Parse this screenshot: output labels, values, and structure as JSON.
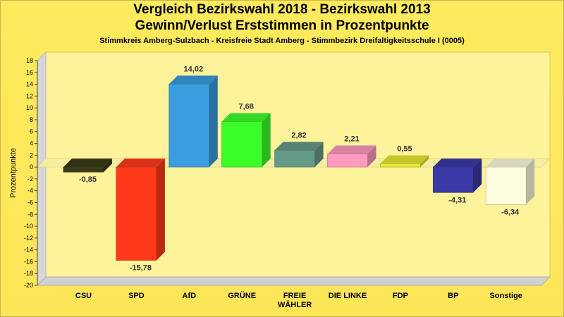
{
  "chart_data": {
    "type": "bar",
    "title": "Vergleich Bezirkswahl 2018 - Bezirkswahl 2013",
    "subtitle": "Gewinn/Verlust Erststimmen in Prozentpunkte",
    "subtitle2": "Stimmkreis Amberg-Sulzbach - Kreisfreie Stadt Amberg - Stimmbezirk Dreifaltigkeitsschule I (0005)",
    "ylabel": "Prozentpunkte",
    "xlabel": "",
    "ylim": [
      -20,
      18
    ],
    "yticks": [
      18,
      16,
      14,
      12,
      10,
      8,
      6,
      4,
      2,
      0,
      -2,
      -4,
      -6,
      -8,
      -10,
      -12,
      -14,
      -16,
      -18,
      -20
    ],
    "grid": false,
    "categories": [
      "CSU",
      "SPD",
      "AfD",
      "GRÜNE",
      "FREIE\nWÄHLER",
      "DIE LINKE",
      "FDP",
      "BP",
      "Sonstige"
    ],
    "values": [
      -0.85,
      -15.78,
      14.02,
      7.68,
      2.82,
      2.21,
      0.55,
      -4.31,
      -6.34
    ],
    "value_labels": [
      "-0,85",
      "-15,78",
      "14,02",
      "7,68",
      "2,82",
      "2,21",
      "0,55",
      "-4,31",
      "-6,34"
    ],
    "colors": [
      "#3a3a1a",
      "#ff3a1a",
      "#3a9de0",
      "#3cff2a",
      "#669a88",
      "#ff9ac0",
      "#e8e830",
      "#3a3aa8",
      "#fffde0"
    ]
  }
}
